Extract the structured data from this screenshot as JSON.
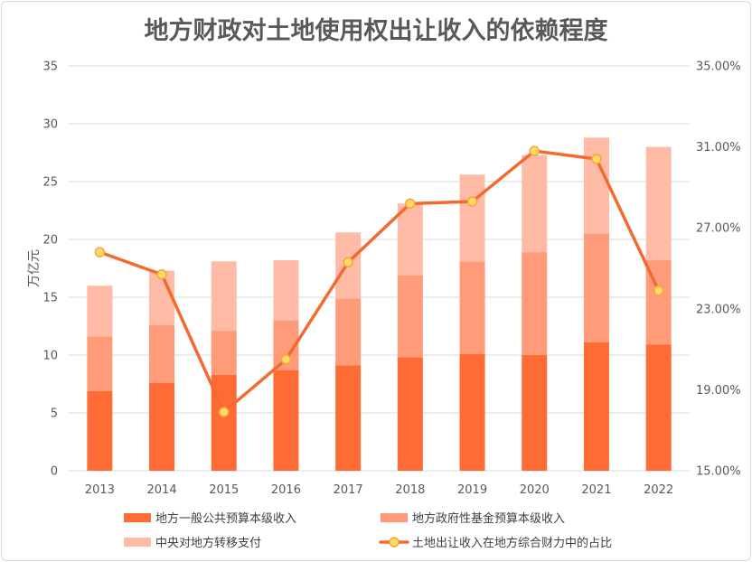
{
  "chart_data": {
    "type": "bar",
    "stacked": true,
    "title": "地方财政对土地使用权出让收入的依赖程度",
    "xlabel": "",
    "ylabel": "万亿元",
    "categories": [
      "2013",
      "2014",
      "2015",
      "2016",
      "2017",
      "2018",
      "2019",
      "2020",
      "2021",
      "2022"
    ],
    "ylim": [
      0,
      35
    ],
    "y_ticks": [
      "0",
      "5",
      "10",
      "15",
      "20",
      "25",
      "30",
      "35"
    ],
    "y2lim": [
      15,
      35
    ],
    "y2_ticks": [
      "15.00%",
      "19.00%",
      "23.00%",
      "27.00%",
      "31.00%",
      "35.00%"
    ],
    "grid": true,
    "legend": "bottom",
    "series": [
      {
        "name": "地方一般公共预算本级收入",
        "type": "bar",
        "axis": "left",
        "color": "#FF6B35",
        "values": [
          6.9,
          7.6,
          8.3,
          8.7,
          9.1,
          9.8,
          10.1,
          10.0,
          11.1,
          10.9
        ]
      },
      {
        "name": "地方政府性基金预算本级收入",
        "type": "bar",
        "axis": "left",
        "color": "#FF9B79",
        "values": [
          4.7,
          5.0,
          3.8,
          4.3,
          5.8,
          7.1,
          8.0,
          8.9,
          9.4,
          7.3
        ]
      },
      {
        "name": "中央对地方转移支付",
        "type": "bar",
        "axis": "left",
        "color": "#FFBBA6",
        "values": [
          4.4,
          4.7,
          6.0,
          5.2,
          5.7,
          6.2,
          7.5,
          8.4,
          8.3,
          9.8
        ]
      },
      {
        "name": "土地出让收入在地方综合财力中的占比",
        "type": "line",
        "axis": "right",
        "color": "#F36A2E",
        "marker_color": "#FFD966",
        "marker_edge_color": "#F4A53C",
        "values": [
          25.8,
          24.7,
          17.9,
          20.5,
          25.3,
          28.2,
          28.3,
          30.8,
          30.4,
          23.9
        ]
      }
    ]
  }
}
